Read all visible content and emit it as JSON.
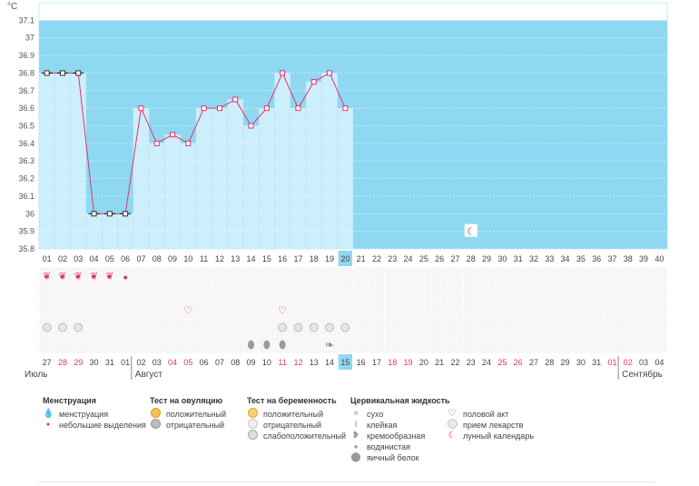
{
  "chart_data": {
    "type": "line",
    "y_unit": "°C",
    "ylim": [
      35.8,
      37.2
    ],
    "y_ticks": [
      "35.8",
      "35.9",
      "36",
      "36.1",
      "36.2",
      "36.3",
      "36.4",
      "36.5",
      "36.6",
      "36.7",
      "36.8",
      "36.9",
      "37",
      "37.1"
    ],
    "cycle_days": [
      "01",
      "02",
      "03",
      "04",
      "05",
      "06",
      "07",
      "08",
      "09",
      "10",
      "11",
      "12",
      "13",
      "14",
      "15",
      "16",
      "17",
      "18",
      "19",
      "20",
      "21",
      "22",
      "23",
      "24",
      "25",
      "26",
      "27",
      "28",
      "29",
      "30",
      "31",
      "32",
      "33",
      "34",
      "35",
      "36",
      "37",
      "38",
      "39",
      "40"
    ],
    "current_day": "20",
    "temperature": [
      36.8,
      36.8,
      36.8,
      36.0,
      36.0,
      36.0,
      36.6,
      36.4,
      36.45,
      36.4,
      36.6,
      36.6,
      36.65,
      36.5,
      36.6,
      36.8,
      36.6,
      36.75,
      36.8,
      36.6
    ],
    "flagged_days": [
      1,
      2,
      3,
      4,
      5,
      6
    ],
    "moon_day": 28,
    "calendar_dates": [
      "27",
      "28",
      "29",
      "30",
      "31",
      "01",
      "02",
      "03",
      "04",
      "05",
      "06",
      "07",
      "08",
      "09",
      "10",
      "11",
      "12",
      "13",
      "14",
      "15",
      "16",
      "17",
      "18",
      "19",
      "20",
      "21",
      "22",
      "23",
      "24",
      "25",
      "26",
      "27",
      "28",
      "29",
      "30",
      "31",
      "01",
      "02",
      "03",
      "04"
    ],
    "weekend_dates": [
      1,
      2,
      8,
      9,
      15,
      16,
      22,
      23,
      29,
      30,
      36,
      37
    ],
    "today_index": 20,
    "months": [
      {
        "label": "Июль",
        "start": 1
      },
      {
        "label": "Август",
        "start": 6
      },
      {
        "label": "Сентябрь",
        "start": 37
      }
    ],
    "markers": {
      "menstruation_heavy": [
        1,
        2,
        3,
        4,
        5
      ],
      "menstruation_light": [
        6
      ],
      "intercourse": [
        10,
        16
      ],
      "pregnancy_negative": [
        1,
        2,
        3,
        16,
        17,
        18,
        19,
        20
      ],
      "cervical_eggwhite": [
        14,
        15,
        16
      ],
      "cervical_creamy": [
        19
      ]
    }
  },
  "colors": {
    "sky": "#8fd8f2",
    "bar": "#cdeefb",
    "line": "#e0336e",
    "weekend": "#e0336e",
    "today": "#8fd8f2"
  },
  "legend": {
    "menstruation": {
      "title": "Менструация",
      "items": [
        "менструация",
        "небольшие выделения"
      ]
    },
    "ovulation": {
      "title": "Тест на овуляцию",
      "items": [
        "положительный",
        "отрицательный"
      ]
    },
    "pregnancy": {
      "title": "Тест на беременность",
      "items": [
        "положительный",
        "отрицательный",
        "слабоположительный"
      ]
    },
    "cervical": {
      "title": "Цервикальная жидкость",
      "items": [
        "сухо",
        "клейкая",
        "кремообразная",
        "водянистая",
        "яичный белок"
      ]
    },
    "other": {
      "items": [
        "половой акт",
        "прием лекарств",
        "лунный календарь"
      ]
    }
  }
}
